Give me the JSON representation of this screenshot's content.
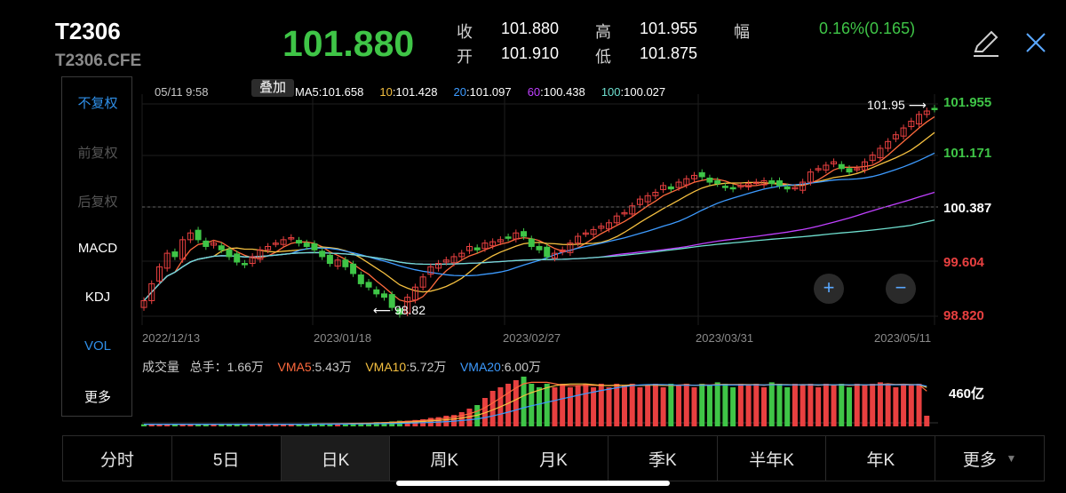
{
  "header": {
    "code": "T2306",
    "subcode": "T2306.CFE",
    "price": "101.880",
    "quote": [
      {
        "label": "收",
        "value": "101.880"
      },
      {
        "label": "高",
        "value": "101.955"
      },
      {
        "label": "开",
        "value": "101.910"
      },
      {
        "label": "低",
        "value": "101.875"
      }
    ],
    "change_label": "幅",
    "change_value": "0.16%(0.165)",
    "edit_icon": "pencil-icon",
    "close_icon": "close-icon"
  },
  "left_panel": {
    "items": [
      {
        "label": "不复权",
        "state": "active"
      },
      {
        "label": "前复权",
        "state": "dim"
      },
      {
        "label": "后复权",
        "state": "dim"
      },
      {
        "label": "MACD",
        "state": "normal"
      },
      {
        "label": "KDJ",
        "state": "normal"
      },
      {
        "label": "VOL",
        "state": "active"
      },
      {
        "label": "更多",
        "state": "normal"
      }
    ]
  },
  "chart_info": {
    "datetime": "05/11 9:58",
    "overlay_label": "叠加",
    "ma": [
      {
        "name": "MA5",
        "value": ":101.658",
        "color": "#ffffff"
      },
      {
        "name": "10",
        "value": ":101.428",
        "color": "#f5c040"
      },
      {
        "name": "20",
        "value": ":101.097",
        "color": "#3d9bff"
      },
      {
        "name": "60",
        "value": ":100.438",
        "color": "#c040ff"
      },
      {
        "name": "100",
        "value": ":100.027",
        "color": "#6fe0d0"
      }
    ]
  },
  "price_axis": {
    "labels": [
      {
        "text": "101.955",
        "color": "#3fc547"
      },
      {
        "text": "101.171",
        "color": "#3fc547"
      },
      {
        "text": "100.387",
        "color": "#ffffff"
      },
      {
        "text": "99.604",
        "color": "#e84040"
      },
      {
        "text": "98.820",
        "color": "#e84040"
      }
    ]
  },
  "annotations": {
    "high": "101.95",
    "low": "98.82"
  },
  "date_axis": [
    "2022/12/13",
    "2023/01/18",
    "2023/02/27",
    "2023/03/31",
    "2023/05/11"
  ],
  "volume_info": {
    "title": "成交量",
    "total": "总手：1.66万",
    "vma": [
      {
        "name": "VMA5",
        "value": ":5.43万",
        "color": "#ff6a3d"
      },
      {
        "name": "VMA10",
        "value": ":5.72万",
        "color": "#f5c040"
      },
      {
        "name": "VMA20",
        "value": ":6.00万",
        "color": "#3d9bff"
      }
    ],
    "axis_label": "460亿"
  },
  "zoom": {
    "plus": "+",
    "minus": "−"
  },
  "tabs": [
    {
      "label": "分时",
      "active": false
    },
    {
      "label": "5日",
      "active": false
    },
    {
      "label": "日K",
      "active": true
    },
    {
      "label": "周K",
      "active": false
    },
    {
      "label": "月K",
      "active": false
    },
    {
      "label": "季K",
      "active": false
    },
    {
      "label": "半年K",
      "active": false
    },
    {
      "label": "年K",
      "active": false
    },
    {
      "label": "更多",
      "active": false
    }
  ],
  "colors": {
    "up": "#e84040",
    "down": "#3fc547"
  },
  "chart_data": {
    "type": "candlestick",
    "y_range": [
      98.82,
      101.955
    ],
    "closes": [
      99.05,
      99.3,
      99.55,
      99.75,
      99.7,
      99.95,
      100.05,
      99.95,
      99.85,
      99.9,
      99.8,
      99.7,
      99.62,
      99.58,
      99.7,
      99.8,
      99.85,
      99.9,
      99.95,
      99.98,
      99.9,
      99.85,
      99.8,
      99.7,
      99.6,
      99.65,
      99.55,
      99.45,
      99.3,
      99.25,
      99.15,
      99.1,
      98.95,
      98.85,
      99.1,
      99.25,
      99.4,
      99.55,
      99.6,
      99.65,
      99.7,
      99.75,
      99.85,
      99.8,
      99.9,
      99.92,
      99.95,
      99.98,
      100.05,
      100.0,
      99.85,
      99.8,
      99.7,
      99.75,
      99.8,
      99.9,
      100.0,
      100.05,
      100.1,
      100.15,
      100.2,
      100.3,
      100.35,
      100.45,
      100.55,
      100.6,
      100.65,
      100.75,
      100.7,
      100.8,
      100.85,
      100.9,
      100.88,
      100.8,
      100.78,
      100.72,
      100.7,
      100.75,
      100.78,
      100.8,
      100.82,
      100.78,
      100.75,
      100.7,
      100.72,
      100.8,
      100.95,
      101.0,
      101.05,
      101.1,
      101.0,
      100.95,
      101.0,
      101.1,
      101.2,
      101.3,
      101.4,
      101.5,
      101.6,
      101.7,
      101.8,
      101.85,
      101.88
    ],
    "volumes": [
      0.3,
      0.3,
      0.3,
      0.3,
      0.3,
      0.3,
      0.3,
      0.3,
      0.3,
      0.3,
      0.3,
      0.3,
      0.3,
      0.3,
      0.3,
      0.3,
      0.3,
      0.3,
      0.3,
      0.3,
      0.3,
      0.3,
      0.4,
      0.4,
      0.4,
      0.4,
      0.4,
      0.5,
      0.5,
      0.5,
      0.6,
      0.6,
      0.7,
      0.8,
      0.8,
      0.9,
      1.0,
      1.2,
      1.3,
      1.5,
      1.6,
      2.0,
      2.5,
      3.0,
      4.0,
      5.0,
      5.5,
      6.0,
      6.5,
      7.0,
      6.0,
      5.5,
      6.0,
      5.5,
      6.0,
      5.5,
      5.8,
      6.0,
      5.5,
      6.0,
      5.5,
      6.0,
      5.8,
      6.0,
      5.5,
      5.8,
      6.0,
      5.5,
      6.0,
      5.8,
      6.0,
      5.5,
      6.0,
      5.8,
      6.2,
      6.0,
      5.5,
      6.0,
      5.8,
      6.0,
      5.5,
      6.2,
      6.0,
      5.5,
      6.0,
      5.8,
      6.0,
      5.5,
      6.0,
      5.8,
      6.0,
      5.5,
      6.0,
      5.8,
      6.0,
      6.2,
      6.0,
      5.5,
      6.0,
      5.8,
      6.0,
      1.5
    ]
  }
}
